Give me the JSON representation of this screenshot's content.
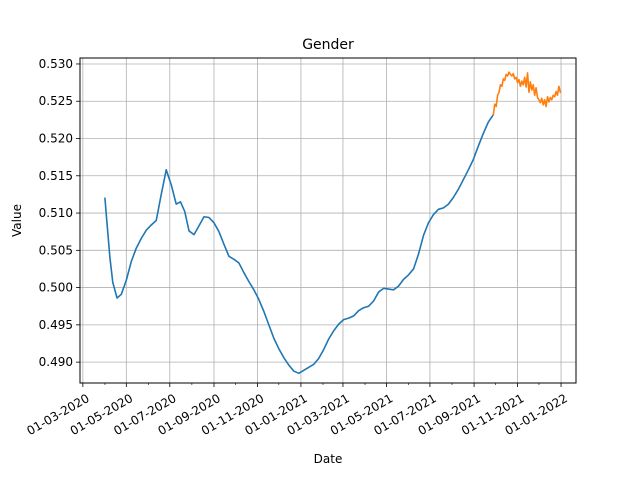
{
  "chart_data": {
    "type": "line",
    "title": "Gender",
    "xlabel": "Date",
    "ylabel": "Value",
    "grid": true,
    "xlim": [
      "2020-02-26",
      "2022-01-22"
    ],
    "ylim": [
      0.4872,
      0.5308
    ],
    "x_ticks": [
      "2020-03-01",
      "2020-05-01",
      "2020-07-01",
      "2020-09-01",
      "2020-11-01",
      "2021-01-01",
      "2021-03-01",
      "2021-05-01",
      "2021-07-01",
      "2021-09-01",
      "2021-11-01",
      "2022-01-01"
    ],
    "x_tick_labels": [
      "01-03-2020",
      "01-05-2020",
      "01-07-2020",
      "01-09-2020",
      "01-11-2020",
      "01-01-2021",
      "01-03-2021",
      "01-05-2021",
      "01-07-2021",
      "01-09-2021",
      "01-11-2021",
      "01-01-2022"
    ],
    "y_ticks": [
      0.49,
      0.495,
      0.5,
      0.505,
      0.51,
      0.515,
      0.52,
      0.525,
      0.53
    ],
    "y_tick_labels": [
      "0.490",
      "0.495",
      "0.500",
      "0.505",
      "0.510",
      "0.515",
      "0.520",
      "0.525",
      "0.530"
    ],
    "series": [
      {
        "color": "#1f77b4",
        "points": [
          [
            "2020-04-01",
            0.512
          ],
          [
            "2020-04-04",
            0.5085
          ],
          [
            "2020-04-08",
            0.504
          ],
          [
            "2020-04-12",
            0.5007
          ],
          [
            "2020-04-18",
            0.4986
          ],
          [
            "2020-04-24",
            0.4991
          ],
          [
            "2020-05-01",
            0.501
          ],
          [
            "2020-05-08",
            0.5035
          ],
          [
            "2020-05-15",
            0.5053
          ],
          [
            "2020-05-22",
            0.5066
          ],
          [
            "2020-05-29",
            0.5077
          ],
          [
            "2020-06-05",
            0.5084
          ],
          [
            "2020-06-12",
            0.509
          ],
          [
            "2020-06-19",
            0.5125
          ],
          [
            "2020-06-26",
            0.5158
          ],
          [
            "2020-07-03",
            0.5138
          ],
          [
            "2020-07-10",
            0.5112
          ],
          [
            "2020-07-16",
            0.5115
          ],
          [
            "2020-07-22",
            0.5102
          ],
          [
            "2020-07-28",
            0.5076
          ],
          [
            "2020-08-04",
            0.5071
          ],
          [
            "2020-08-11",
            0.5083
          ],
          [
            "2020-08-18",
            0.5095
          ],
          [
            "2020-08-25",
            0.5094
          ],
          [
            "2020-09-01",
            0.5087
          ],
          [
            "2020-09-08",
            0.5075
          ],
          [
            "2020-09-15",
            0.5058
          ],
          [
            "2020-09-22",
            0.5042
          ],
          [
            "2020-09-29",
            0.5038
          ],
          [
            "2020-10-06",
            0.5033
          ],
          [
            "2020-10-13",
            0.502
          ],
          [
            "2020-10-20",
            0.5008
          ],
          [
            "2020-10-27",
            0.4997
          ],
          [
            "2020-11-03",
            0.4984
          ],
          [
            "2020-11-10",
            0.4968
          ],
          [
            "2020-11-17",
            0.495
          ],
          [
            "2020-11-24",
            0.4932
          ],
          [
            "2020-12-01",
            0.4918
          ],
          [
            "2020-12-08",
            0.4906
          ],
          [
            "2020-12-15",
            0.4896
          ],
          [
            "2020-12-22",
            0.4888
          ],
          [
            "2020-12-29",
            0.4885
          ],
          [
            "2021-01-05",
            0.4889
          ],
          [
            "2021-01-12",
            0.4893
          ],
          [
            "2021-01-19",
            0.4897
          ],
          [
            "2021-01-26",
            0.4905
          ],
          [
            "2021-02-02",
            0.4917
          ],
          [
            "2021-02-09",
            0.4931
          ],
          [
            "2021-02-16",
            0.4942
          ],
          [
            "2021-02-23",
            0.4951
          ],
          [
            "2021-03-02",
            0.4957
          ],
          [
            "2021-03-09",
            0.4959
          ],
          [
            "2021-03-16",
            0.4962
          ],
          [
            "2021-03-23",
            0.4969
          ],
          [
            "2021-03-30",
            0.4973
          ],
          [
            "2021-04-06",
            0.4975
          ],
          [
            "2021-04-13",
            0.4982
          ],
          [
            "2021-04-20",
            0.4994
          ],
          [
            "2021-04-27",
            0.4999
          ],
          [
            "2021-05-04",
            0.4998
          ],
          [
            "2021-05-11",
            0.4997
          ],
          [
            "2021-05-18",
            0.5002
          ],
          [
            "2021-05-25",
            0.5011
          ],
          [
            "2021-06-01",
            0.5017
          ],
          [
            "2021-06-08",
            0.5025
          ],
          [
            "2021-06-15",
            0.5045
          ],
          [
            "2021-06-22",
            0.507
          ],
          [
            "2021-06-29",
            0.5087
          ],
          [
            "2021-07-06",
            0.5098
          ],
          [
            "2021-07-13",
            0.5105
          ],
          [
            "2021-07-20",
            0.5107
          ],
          [
            "2021-07-27",
            0.5112
          ],
          [
            "2021-08-03",
            0.5121
          ],
          [
            "2021-08-10",
            0.5132
          ],
          [
            "2021-08-17",
            0.5145
          ],
          [
            "2021-08-24",
            0.5158
          ],
          [
            "2021-08-31",
            0.5172
          ],
          [
            "2021-09-07",
            0.519
          ],
          [
            "2021-09-14",
            0.5207
          ],
          [
            "2021-09-21",
            0.5222
          ],
          [
            "2021-09-28",
            0.5232
          ]
        ]
      },
      {
        "color": "#ff7f0e",
        "points": [
          [
            "2021-09-28",
            0.5232
          ],
          [
            "2021-09-30",
            0.5246
          ],
          [
            "2021-10-02",
            0.5243
          ],
          [
            "2021-10-04",
            0.5258
          ],
          [
            "2021-10-06",
            0.5262
          ],
          [
            "2021-10-08",
            0.5272
          ],
          [
            "2021-10-10",
            0.527
          ],
          [
            "2021-10-12",
            0.528
          ],
          [
            "2021-10-14",
            0.5278
          ],
          [
            "2021-10-16",
            0.5286
          ],
          [
            "2021-10-18",
            0.5284
          ],
          [
            "2021-10-20",
            0.5289
          ],
          [
            "2021-10-22",
            0.5286
          ],
          [
            "2021-10-24",
            0.5284
          ],
          [
            "2021-10-26",
            0.5287
          ],
          [
            "2021-10-28",
            0.528
          ],
          [
            "2021-10-30",
            0.5282
          ],
          [
            "2021-11-01",
            0.5275
          ],
          [
            "2021-11-03",
            0.5279
          ],
          [
            "2021-11-05",
            0.527
          ],
          [
            "2021-11-07",
            0.5277
          ],
          [
            "2021-11-09",
            0.5272
          ],
          [
            "2021-11-11",
            0.5282
          ],
          [
            "2021-11-13",
            0.5269
          ],
          [
            "2021-11-15",
            0.5288
          ],
          [
            "2021-11-17",
            0.5262
          ],
          [
            "2021-11-19",
            0.5276
          ],
          [
            "2021-11-21",
            0.5265
          ],
          [
            "2021-11-23",
            0.5272
          ],
          [
            "2021-11-25",
            0.5258
          ],
          [
            "2021-11-27",
            0.5268
          ],
          [
            "2021-11-29",
            0.5255
          ],
          [
            "2021-12-01",
            0.5252
          ],
          [
            "2021-12-03",
            0.5248
          ],
          [
            "2021-12-05",
            0.5254
          ],
          [
            "2021-12-07",
            0.5245
          ],
          [
            "2021-12-09",
            0.5252
          ],
          [
            "2021-12-11",
            0.5243
          ],
          [
            "2021-12-13",
            0.5256
          ],
          [
            "2021-12-15",
            0.5249
          ],
          [
            "2021-12-17",
            0.5255
          ],
          [
            "2021-12-19",
            0.5252
          ],
          [
            "2021-12-21",
            0.5258
          ],
          [
            "2021-12-23",
            0.5256
          ],
          [
            "2021-12-25",
            0.5263
          ],
          [
            "2021-12-27",
            0.5258
          ],
          [
            "2021-12-29",
            0.527
          ],
          [
            "2021-12-31",
            0.5262
          ]
        ]
      }
    ]
  }
}
